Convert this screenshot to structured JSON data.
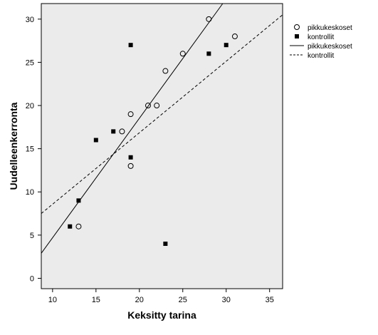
{
  "chart_data": {
    "type": "scatter",
    "xlabel": "Keksitty tarina",
    "ylabel": "Uudelleenkerronta",
    "xlim": [
      8.7,
      36.5
    ],
    "ylim": [
      -1.2,
      31.8
    ],
    "xticks": [
      10,
      15,
      20,
      25,
      30,
      35
    ],
    "yticks": [
      0,
      5,
      10,
      15,
      20,
      25,
      30
    ],
    "plot_background": "#ebebeb",
    "grid": false,
    "legend_position": "right",
    "series": [
      {
        "name": "pikkukeskoset",
        "marker": "open-circle",
        "points": [
          {
            "x": 13,
            "y": 6
          },
          {
            "x": 18,
            "y": 17
          },
          {
            "x": 19,
            "y": 19
          },
          {
            "x": 19,
            "y": 13
          },
          {
            "x": 21,
            "y": 20
          },
          {
            "x": 22,
            "y": 20
          },
          {
            "x": 23,
            "y": 24
          },
          {
            "x": 25,
            "y": 26
          },
          {
            "x": 28,
            "y": 30
          },
          {
            "x": 31,
            "y": 28
          }
        ]
      },
      {
        "name": "kontrollit",
        "marker": "filled-square",
        "points": [
          {
            "x": 12,
            "y": 6
          },
          {
            "x": 13,
            "y": 9
          },
          {
            "x": 15,
            "y": 16
          },
          {
            "x": 17,
            "y": 17
          },
          {
            "x": 19,
            "y": 27
          },
          {
            "x": 19,
            "y": 14
          },
          {
            "x": 23,
            "y": 4
          },
          {
            "x": 28,
            "y": 26
          },
          {
            "x": 30,
            "y": 27
          }
        ]
      }
    ],
    "fit_lines": [
      {
        "name": "pikkukeskoset",
        "style": "solid",
        "x1": 8.7,
        "y1": 2.9,
        "x2": 29.6,
        "y2": 31.8
      },
      {
        "name": "kontrollit",
        "style": "dashed",
        "x1": 8.7,
        "y1": 7.5,
        "x2": 36.5,
        "y2": 30.5
      }
    ],
    "legend": [
      {
        "label": "pikkukeskoset",
        "symbol": "open-circle"
      },
      {
        "label": "kontrollit",
        "symbol": "filled-square"
      },
      {
        "label": "pikkukeskoset",
        "symbol": "solid-line"
      },
      {
        "label": "kontrollit",
        "symbol": "dashed-line"
      }
    ]
  }
}
